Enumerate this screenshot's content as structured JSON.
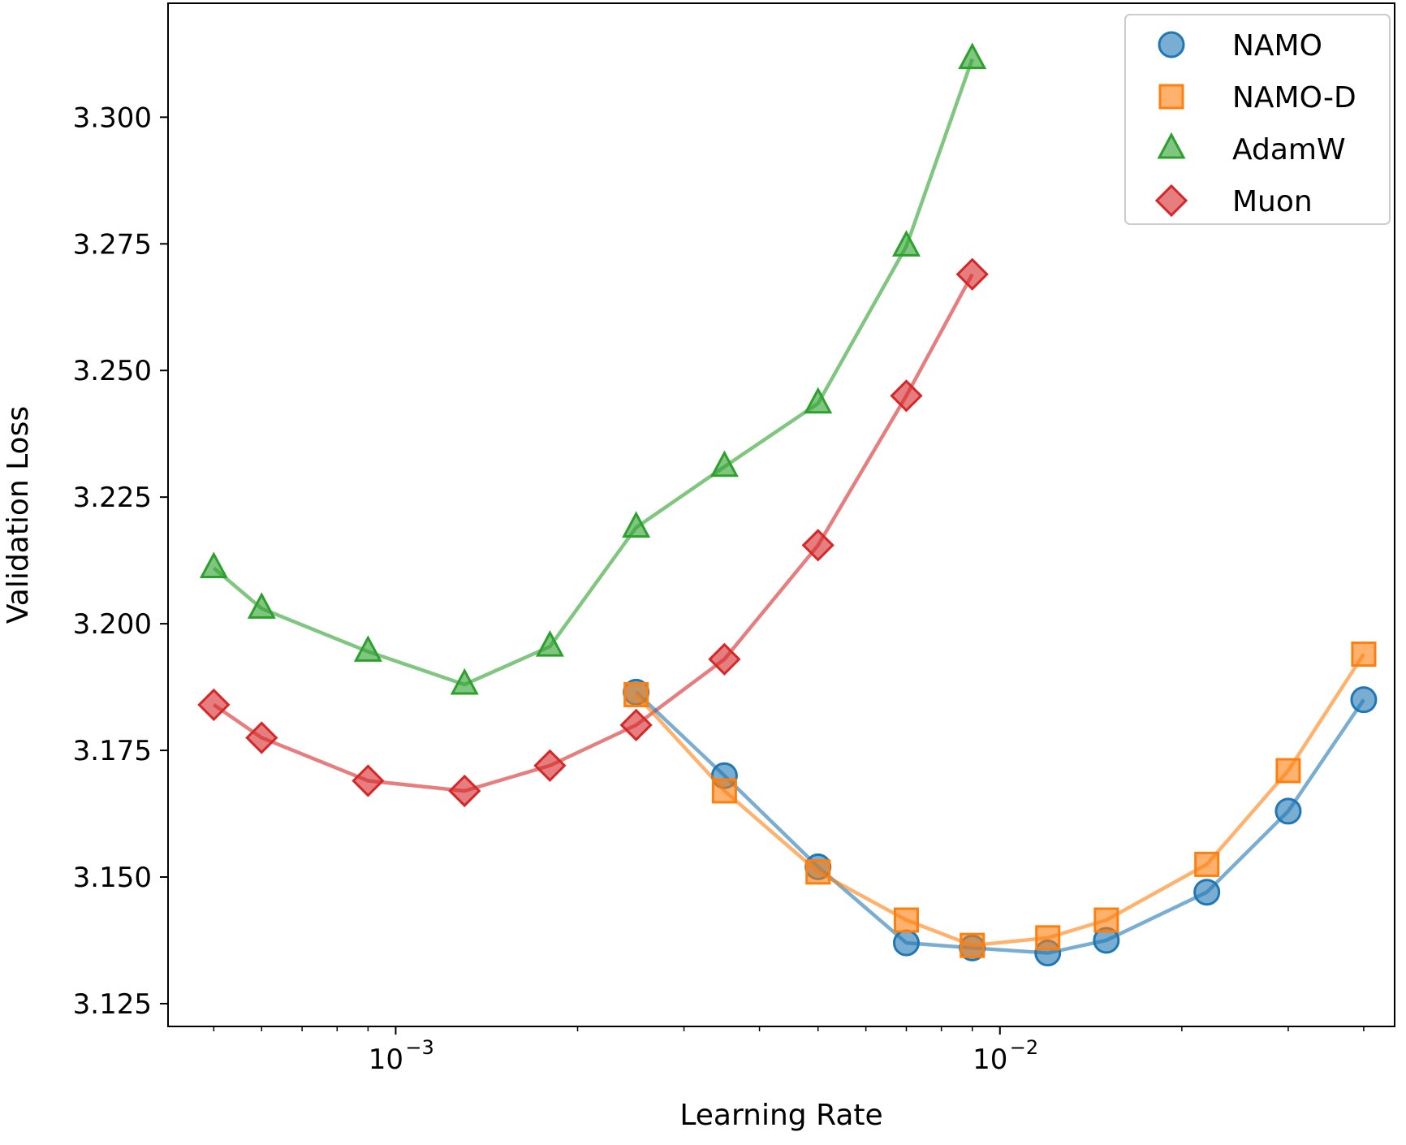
{
  "chart_data": {
    "type": "line",
    "title": "",
    "xlabel": "Learning Rate",
    "ylabel": "Validation Loss",
    "xscale": "log",
    "xlim": [
      0.00042,
      0.045
    ],
    "ylim": [
      3.1205,
      3.3225
    ],
    "yticks": [
      3.125,
      3.15,
      3.175,
      3.2,
      3.225,
      3.25,
      3.275,
      3.3
    ],
    "ytick_labels": [
      "3.125",
      "3.150",
      "3.175",
      "3.200",
      "3.225",
      "3.250",
      "3.275",
      "3.300"
    ],
    "xticks_major": [
      0.001,
      0.01
    ],
    "xtick_labels": [
      {
        "base": "10",
        "exp": "−3"
      },
      {
        "base": "10",
        "exp": "−2"
      }
    ],
    "legend": {
      "position": "top-right"
    },
    "series": [
      {
        "name": "NAMO",
        "color": "#1f77b4",
        "marker": "circle",
        "x": [
          0.0025,
          0.0035,
          0.005,
          0.007,
          0.009,
          0.012,
          0.015,
          0.022,
          0.03,
          0.04
        ],
        "y": [
          3.1865,
          3.17,
          3.152,
          3.137,
          3.136,
          3.135,
          3.1375,
          3.147,
          3.163,
          3.185
        ]
      },
      {
        "name": "NAMO-D",
        "color": "#ff7f0e",
        "marker": "square",
        "x": [
          0.0025,
          0.0035,
          0.005,
          0.007,
          0.009,
          0.012,
          0.015,
          0.022,
          0.03,
          0.04
        ],
        "y": [
          3.186,
          3.167,
          3.151,
          3.1415,
          3.1365,
          3.138,
          3.1415,
          3.1525,
          3.171,
          3.194
        ]
      },
      {
        "name": "AdamW",
        "color": "#2ca02c",
        "marker": "triangle",
        "x": [
          0.0005,
          0.0006,
          0.0009,
          0.0013,
          0.0018,
          0.0025,
          0.0035,
          0.005,
          0.007,
          0.009
        ],
        "y": [
          3.211,
          3.203,
          3.1945,
          3.188,
          3.1955,
          3.219,
          3.231,
          3.2435,
          3.2745,
          3.3115
        ]
      },
      {
        "name": "Muon",
        "color": "#d62728",
        "marker": "diamond",
        "x": [
          0.0005,
          0.0006,
          0.0009,
          0.0013,
          0.0018,
          0.0025,
          0.0035,
          0.005,
          0.007,
          0.009
        ],
        "y": [
          3.184,
          3.1775,
          3.169,
          3.167,
          3.172,
          3.18,
          3.193,
          3.2155,
          3.245,
          3.269
        ]
      }
    ]
  }
}
